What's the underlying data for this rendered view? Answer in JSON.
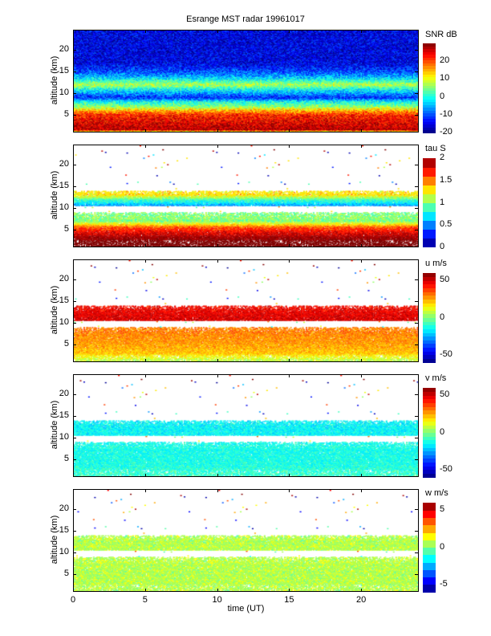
{
  "chart_data": {
    "type": "heatmap",
    "title": "Esrange MST radar 19961017",
    "xlabel": "time (UT)",
    "xlim": [
      0,
      24
    ],
    "xticks": [
      "0",
      "5",
      "10",
      "15",
      "20"
    ],
    "panels": [
      {
        "id": "snr",
        "ylabel": "altitude (km)",
        "ylim": [
          1,
          24.5
        ],
        "yticks": [
          "5",
          "10",
          "15",
          "20"
        ],
        "colorbar_title": "SNR dB",
        "clim": [
          -20,
          30
        ],
        "cticks": [
          "-20",
          "-10",
          "0",
          "10",
          "20"
        ],
        "levels": 32,
        "fill": "full",
        "profile": [
          [
            1,
            5
          ],
          [
            1.5,
            28
          ],
          [
            5,
            22
          ],
          [
            6,
            15
          ],
          [
            7,
            5
          ],
          [
            8,
            0
          ],
          [
            9,
            -12
          ],
          [
            11,
            0
          ],
          [
            12,
            8
          ],
          [
            13.5,
            -3
          ],
          [
            15,
            -10
          ],
          [
            17,
            -15
          ],
          [
            24.5,
            -15
          ]
        ]
      },
      {
        "id": "tau",
        "ylabel": "altitude (km)",
        "ylim": [
          1,
          24.5
        ],
        "yticks": [
          "5",
          "10",
          "15",
          "20"
        ],
        "colorbar_title": "tau S",
        "clim": [
          0,
          2
        ],
        "cticks": [
          "0",
          "0.5",
          "1",
          "1.5",
          "2"
        ],
        "levels": 10,
        "fill": "gapped",
        "profile": [
          [
            1,
            2.3
          ],
          [
            5.5,
            1.6
          ],
          [
            7,
            1.0
          ],
          [
            9,
            1.0
          ],
          [
            10.5,
            0.55
          ],
          [
            12,
            0.9
          ],
          [
            13,
            1.3
          ],
          [
            14,
            1.3
          ]
        ]
      },
      {
        "id": "u",
        "ylabel": "altitude (km)",
        "ylim": [
          1,
          24.5
        ],
        "yticks": [
          "5",
          "10",
          "15",
          "20"
        ],
        "colorbar_title": "u m/s",
        "clim": [
          -60,
          60
        ],
        "cticks": [
          "-50",
          "0",
          "50"
        ],
        "levels": 24,
        "fill": "gapped",
        "profile": [
          [
            1,
            5
          ],
          [
            3,
            22
          ],
          [
            6,
            28
          ],
          [
            9,
            30
          ],
          [
            10.5,
            50
          ],
          [
            14,
            45
          ]
        ]
      },
      {
        "id": "v",
        "ylabel": "altitude (km)",
        "ylim": [
          1,
          24.5
        ],
        "yticks": [
          "5",
          "10",
          "15",
          "20"
        ],
        "colorbar_title": "v m/s",
        "clim": [
          -60,
          60
        ],
        "cticks": [
          "-50",
          "0",
          "50"
        ],
        "levels": 24,
        "fill": "gapped",
        "profile": [
          [
            1,
            -8
          ],
          [
            4,
            -12
          ],
          [
            9,
            -13
          ],
          [
            10.5,
            -15
          ],
          [
            14,
            -15
          ]
        ]
      },
      {
        "id": "w",
        "ylabel": "altitude (km)",
        "ylim": [
          1,
          24.5
        ],
        "yticks": [
          "5",
          "10",
          "15",
          "20"
        ],
        "colorbar_title": "w m/s",
        "clim": [
          -6,
          6
        ],
        "cticks": [
          "-5",
          "0",
          "5"
        ],
        "levels": 12,
        "fill": "gapped",
        "profile": [
          [
            1,
            0.6
          ],
          [
            14,
            0.6
          ]
        ]
      }
    ]
  }
}
